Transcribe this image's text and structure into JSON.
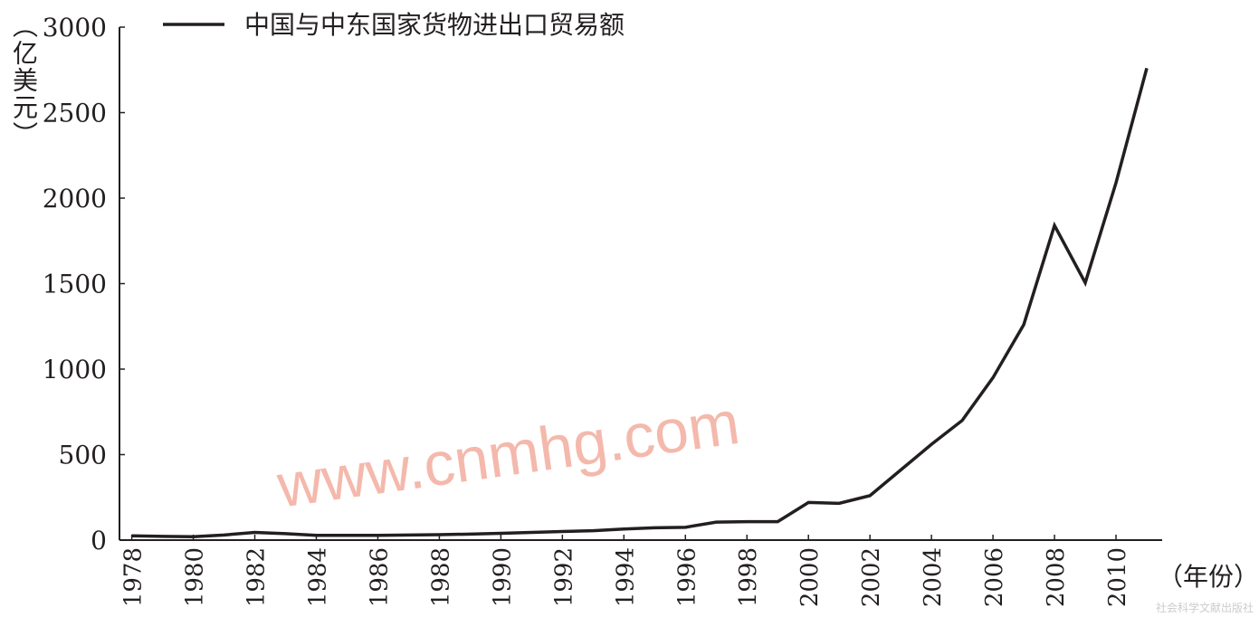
{
  "chart_data": {
    "type": "line",
    "y_label": "（亿美元）",
    "x_label": "（年份）",
    "watermark": "www.cnmhg.com",
    "source": "社会科学文献出版社",
    "x": [
      1978,
      1979,
      1980,
      1981,
      1982,
      1983,
      1984,
      1985,
      1986,
      1987,
      1988,
      1989,
      1990,
      1991,
      1992,
      1993,
      1994,
      1995,
      1996,
      1997,
      1998,
      1999,
      2000,
      2001,
      2002,
      2003,
      2004,
      2005,
      2006,
      2007,
      2008,
      2009,
      2010,
      2011
    ],
    "series": [
      {
        "name": "中国与中东国家货物进出口贸易额",
        "color": "#231f20",
        "values": [
          25,
          22,
          20,
          30,
          45,
          38,
          28,
          28,
          28,
          30,
          32,
          35,
          40,
          45,
          50,
          55,
          65,
          72,
          75,
          105,
          108,
          108,
          220,
          215,
          260,
          410,
          560,
          700,
          950,
          1260,
          1840,
          1505,
          2090,
          2760
        ]
      }
    ],
    "xlim": [
      1977.6,
      2011.5
    ],
    "xticks": [
      1978,
      1980,
      1982,
      1984,
      1986,
      1988,
      1990,
      1992,
      1994,
      1996,
      1998,
      2000,
      2002,
      2004,
      2006,
      2008,
      2010
    ],
    "ylim": [
      0,
      3000
    ],
    "yticks": [
      0,
      500,
      1000,
      1500,
      2000,
      2500,
      3000
    ],
    "grid": false
  }
}
